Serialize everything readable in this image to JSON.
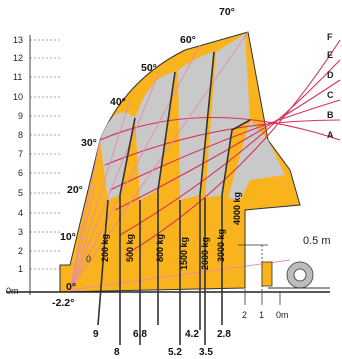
{
  "y_axis": {
    "ticks": [
      "1",
      "2",
      "3",
      "4",
      "5",
      "6",
      "7",
      "8",
      "9",
      "10",
      "11",
      "12",
      "13"
    ],
    "zero_label": "0m"
  },
  "angles": [
    "-2.2°",
    "0°",
    "10°",
    "20°",
    "30°",
    "40°",
    "50°",
    "60°",
    "70°"
  ],
  "arc_labels": [
    "A",
    "B",
    "C",
    "D",
    "E",
    "F"
  ],
  "zones": [
    "200 kg",
    "500 kg",
    "800 kg",
    "1500 kg",
    "2000 kg",
    "3000 kg",
    "4000 kg"
  ],
  "x_labels": [
    "9",
    "8",
    "6.8",
    "5.2",
    "4.2",
    "3.5",
    "2.8"
  ],
  "right_axis": {
    "labels": [
      "2",
      "1",
      "0m"
    ]
  },
  "offset_label": "0.5 m",
  "left_mark": "0",
  "colors": {
    "orange": "#f9b31c",
    "gray": "#c9c9c9",
    "red": "#d8315b",
    "pink": "#e48bb0",
    "line": "#333333"
  }
}
